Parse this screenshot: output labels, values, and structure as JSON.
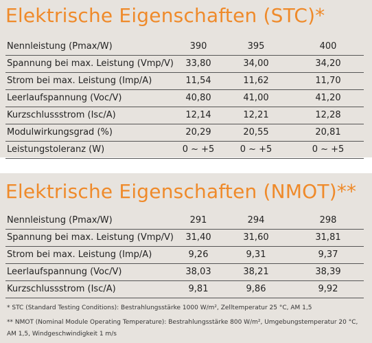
{
  "stc": {
    "title": "Elektrische Eigenschaften (STC)*",
    "rows": [
      [
        "Nennleistung (Pmax/W)",
        "390",
        "395",
        "400"
      ],
      [
        "Spannung bei max. Leistung (Vmp/V)",
        "33,80",
        "34,00",
        "34,20"
      ],
      [
        "Strom bei max. Leistung (Imp/A)",
        "11,54",
        "11,62",
        "11,70"
      ],
      [
        "Leerlaufspannung (Voc/V)",
        "40,80",
        "41,00",
        "41,20"
      ],
      [
        "Kurzschlussstrom (Isc/A)",
        "12,14",
        "12,21",
        "12,28"
      ],
      [
        "Modulwirkungsgrad (%)",
        "20,29",
        "20,55",
        "20,81"
      ],
      [
        "Leistungstoleranz (W)",
        "0 ~ +5",
        "0 ~ +5",
        "0 ~ +5"
      ]
    ]
  },
  "nmot": {
    "title": "Elektrische Eigenschaften (NMOT)**",
    "rows": [
      [
        "Nennleistung (Pmax/W)",
        "291",
        "294",
        "298"
      ],
      [
        "Spannung bei max. Leistung (Vmp/V)",
        "31,40",
        "31,60",
        "31,81"
      ],
      [
        "Strom bei max. Leistung (Imp/A)",
        "9,26",
        "9,31",
        "9,37"
      ],
      [
        "Leerlaufspannung (Voc/V)",
        "38,03",
        "38,21",
        "38,39"
      ],
      [
        "Kurzschlussstrom (Isc/A)",
        "9,81",
        "9,86",
        "9,92"
      ]
    ]
  },
  "footnotes": [
    "* STC (Standard Testing Conditions): Bestrahlungsstärke 1000 W/m², Zelltemperatur 25 °C, AM 1,5",
    "** NMOT (Nominal Module Operating Temperature): Bestrahlungsstärke 800 W/m², Umgebungstemperatur 20 °C, AM 1,5, Windgeschwindigkeit 1 m/s"
  ]
}
